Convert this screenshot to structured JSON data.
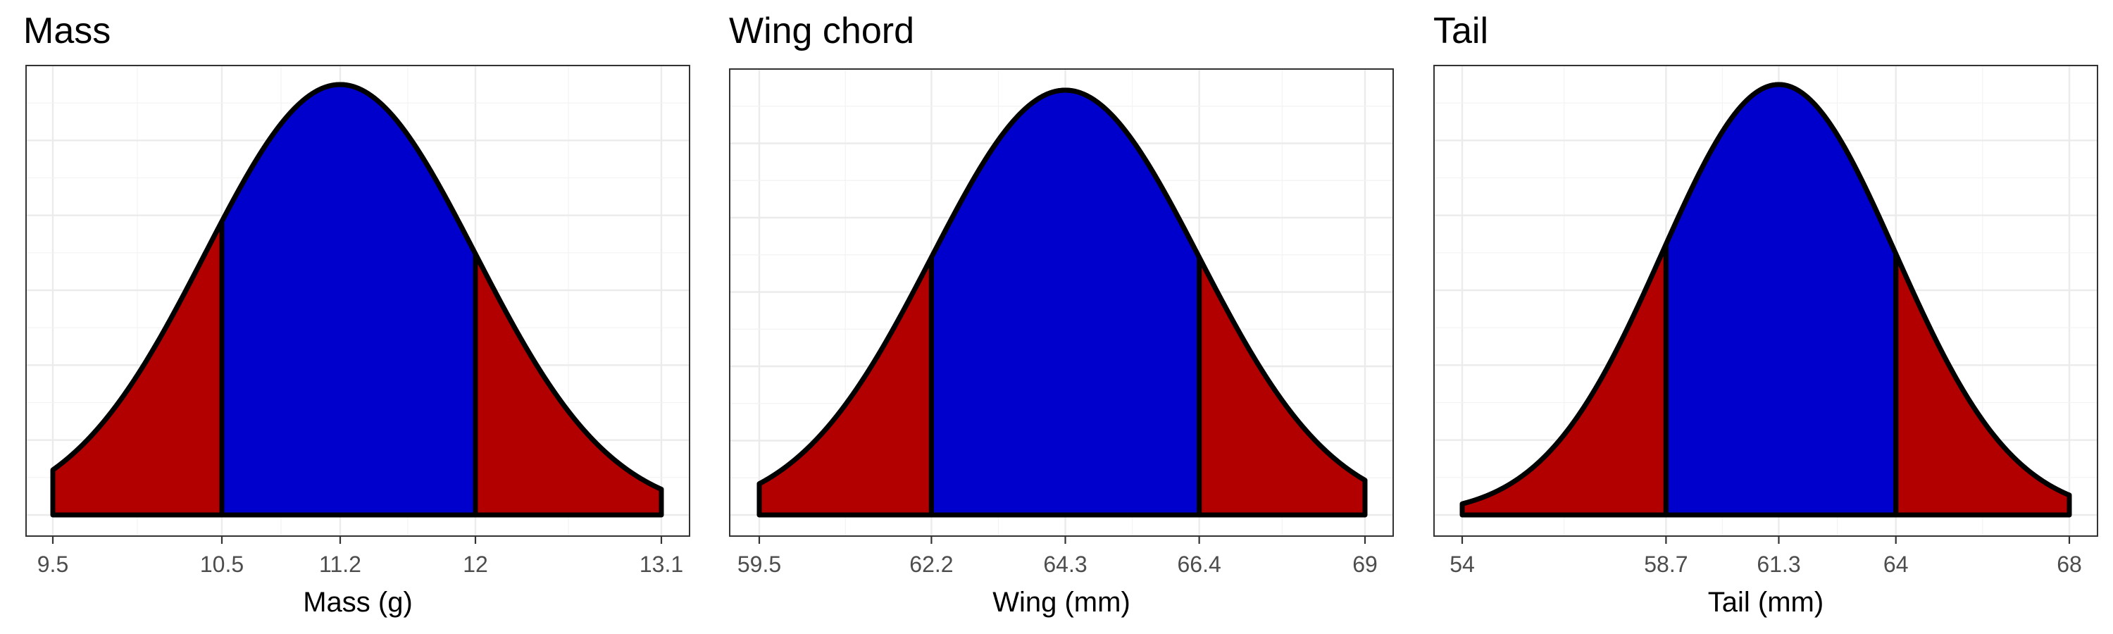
{
  "colors": {
    "center": "#0000cd",
    "tails": "#b20000",
    "outline": "#000000",
    "grid": "#ebebeb",
    "panel_border": "#333333"
  },
  "chart_data": [
    {
      "type": "area",
      "title": "Mass",
      "xlabel": "Mass (g)",
      "ylabel": "",
      "mean": 11.2,
      "sd": 0.8,
      "xlim": [
        9.5,
        13.1
      ],
      "xticks": [
        9.5,
        10.5,
        11.2,
        12,
        13.1
      ],
      "xtick_labels": [
        "9.5",
        "10.5",
        "11.2",
        "12",
        "13.1"
      ],
      "shaded_interval": [
        10.5,
        12
      ],
      "regions": [
        {
          "from": 9.5,
          "to": 10.5,
          "fill": "tails"
        },
        {
          "from": 10.5,
          "to": 12,
          "fill": "center"
        },
        {
          "from": 12,
          "to": 13.1,
          "fill": "tails"
        }
      ],
      "grid": true,
      "y_ticks_shown": false
    },
    {
      "type": "area",
      "title": "Wing chord",
      "xlabel": "Wing (mm)",
      "ylabel": "",
      "mean": 64.3,
      "sd": 2.1,
      "xlim": [
        59.5,
        69
      ],
      "xticks": [
        59.5,
        62.2,
        64.3,
        66.4,
        69
      ],
      "xtick_labels": [
        "59.5",
        "62.2",
        "64.3",
        "66.4",
        "69"
      ],
      "shaded_interval": [
        62.2,
        66.4
      ],
      "regions": [
        {
          "from": 59.5,
          "to": 62.2,
          "fill": "tails"
        },
        {
          "from": 62.2,
          "to": 66.4,
          "fill": "center"
        },
        {
          "from": 66.4,
          "to": 69,
          "fill": "tails"
        }
      ],
      "grid": true,
      "y_ticks_shown": false
    },
    {
      "type": "area",
      "title": "Tail",
      "xlabel": "Tail (mm)",
      "ylabel": "",
      "mean": 61.3,
      "sd": 2.7,
      "xlim": [
        54,
        68
      ],
      "xticks": [
        54,
        58.7,
        61.3,
        64,
        68
      ],
      "xtick_labels": [
        "54",
        "58.7",
        "61.3",
        "64",
        "68"
      ],
      "shaded_interval": [
        58.7,
        64
      ],
      "regions": [
        {
          "from": 54,
          "to": 58.7,
          "fill": "tails"
        },
        {
          "from": 58.7,
          "to": 64,
          "fill": "center"
        },
        {
          "from": 64,
          "to": 68,
          "fill": "tails"
        }
      ],
      "grid": true,
      "y_ticks_shown": false
    }
  ]
}
